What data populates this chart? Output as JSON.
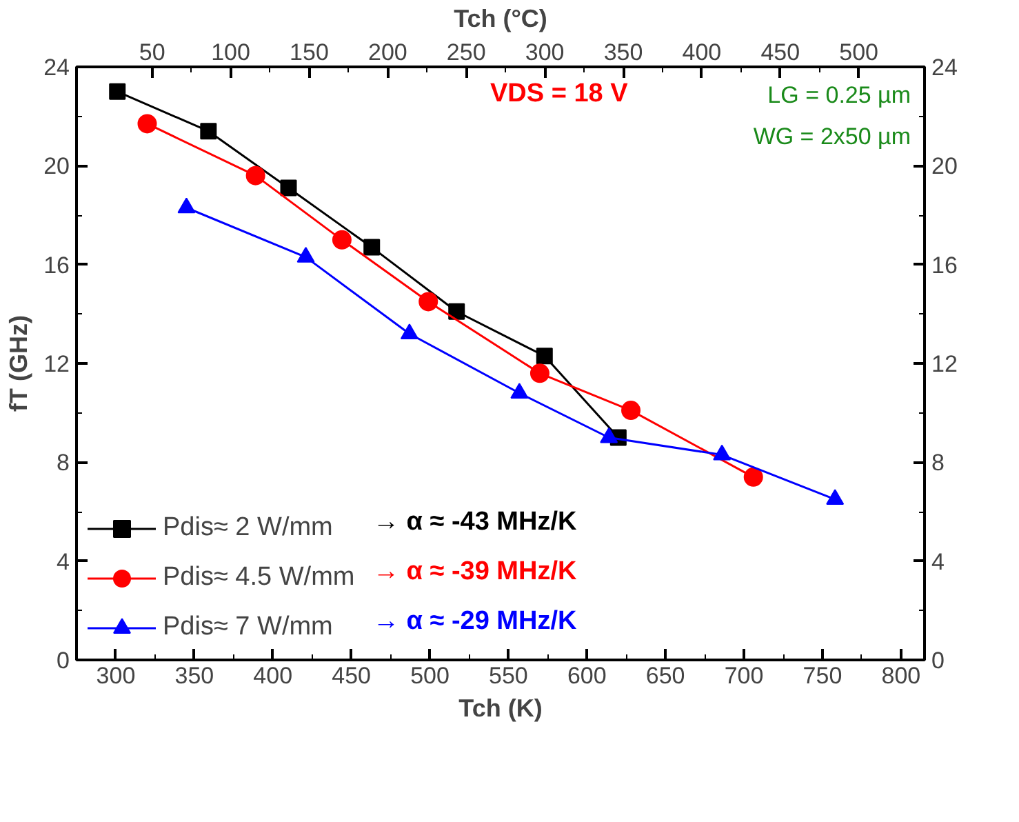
{
  "chart_data": {
    "type": "line",
    "xlabel": "Tch (K)",
    "ylabel": "fT (GHz)",
    "x2label": "Tch (°C)",
    "xlim": [
      275,
      815
    ],
    "xticks": [
      300,
      350,
      400,
      450,
      500,
      550,
      600,
      650,
      700,
      750,
      800
    ],
    "x2lim": [
      1.85,
      541.85
    ],
    "x2ticks": [
      50,
      100,
      150,
      200,
      250,
      300,
      350,
      400,
      450,
      500
    ],
    "ylim": [
      0,
      24
    ],
    "yticks": [
      0,
      4,
      8,
      12,
      16,
      20,
      24
    ],
    "y2lim": [
      0,
      24
    ],
    "y2ticks": [
      0,
      4,
      8,
      12,
      16,
      20,
      24
    ],
    "grid": false,
    "legend": "bottom left",
    "line_style": "solid",
    "series": [
      {
        "name": "Pdis≈ 2 W/mm",
        "color": "#000000",
        "marker": "square",
        "x": [
          301,
          359,
          410,
          463,
          517,
          573,
          620
        ],
        "values": [
          23.0,
          21.4,
          19.1,
          16.7,
          14.1,
          12.3,
          9.0
        ]
      },
      {
        "name": "Pdis≈ 4.5 W/mm",
        "color": "#ff0000",
        "marker": "circle",
        "x": [
          320,
          389,
          444,
          499,
          570,
          628,
          706
        ],
        "values": [
          21.7,
          19.6,
          17.0,
          14.5,
          11.6,
          10.1,
          7.4
        ]
      },
      {
        "name": "Pdis≈ 7 W/mm",
        "color": "#0000ff",
        "marker": "triangle",
        "x": [
          345,
          421,
          487,
          557,
          614,
          686,
          758
        ],
        "values": [
          18.3,
          16.3,
          13.2,
          10.8,
          9.0,
          8.3,
          6.5
        ]
      }
    ],
    "annotations": [
      "VDS = 18 V",
      "LG = 0.25 µm",
      "WG = 2x50 µm",
      "→  α ≈ -43 MHz/K",
      "→  α ≈ -39 MHz/K",
      "→  α ≈ -29 MHz/K"
    ]
  }
}
